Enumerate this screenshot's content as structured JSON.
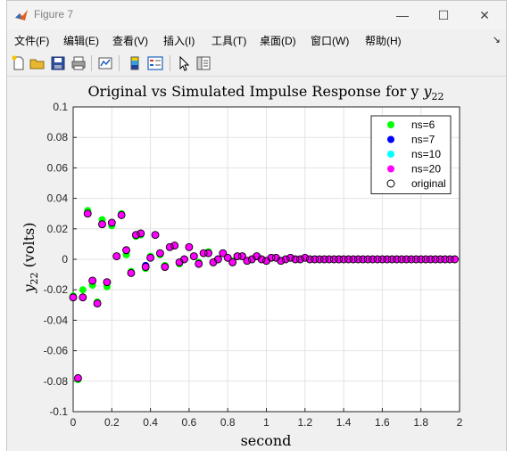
{
  "window": {
    "title": "Figure 7",
    "minimize_glyph": "—",
    "maximize_glyph": "☐",
    "close_glyph": "✕"
  },
  "menu": {
    "items": [
      "文件(F)",
      "编辑(E)",
      "查看(V)",
      "插入(I)",
      "工具(T)",
      "桌面(D)",
      "窗口(W)",
      "帮助(H)"
    ],
    "pin_glyph": "↘"
  },
  "toolbar": {
    "icons": [
      "new-figure-icon",
      "open-file-icon",
      "save-icon",
      "print-icon",
      "link-plot-icon",
      "colorbar-icon",
      "legend-icon",
      "pointer-icon",
      "property-inspector-icon"
    ]
  },
  "chart_data": {
    "type": "scatter",
    "title": "Original vs Simulated Impulse Response for y",
    "title_subscript": "22",
    "xlabel": "second",
    "ylabel": "y",
    "ylabel_subscript": "22",
    "ylabel_suffix": "(volts)",
    "xlim": [
      0,
      2
    ],
    "ylim": [
      -0.1,
      0.1
    ],
    "xticks": [
      0,
      0.2,
      0.4,
      0.6,
      0.8,
      1,
      1.2,
      1.4,
      1.6,
      1.8,
      2
    ],
    "xtick_labels": [
      "0",
      "0.2",
      "0.4",
      "0.6",
      "0.8",
      "1",
      "1.2",
      "1.4",
      "1.6",
      "1.8",
      "2"
    ],
    "yticks": [
      -0.1,
      -0.08,
      -0.06,
      -0.04,
      -0.02,
      0,
      0.02,
      0.04,
      0.06,
      0.08,
      0.1
    ],
    "ytick_labels": [
      "-0.1",
      "-0.08",
      "-0.06",
      "-0.04",
      "-0.02",
      "0",
      "0.02",
      "0.04",
      "0.06",
      "0.08",
      "0.1"
    ],
    "grid": true,
    "legend_position": "top-right",
    "sample_time": 0.025,
    "series": [
      {
        "name": "ns=6",
        "color": "#00ff00",
        "values": [
          -0.024,
          -0.079,
          -0.02,
          0.032,
          -0.017,
          -0.028,
          0.026,
          -0.018,
          0.022,
          0.002,
          0.03,
          0.003,
          -0.008,
          0.015,
          0.016,
          -0.006,
          0.002,
          0.016,
          0.003,
          -0.004,
          0.008,
          0.009,
          -0.003,
          0.0,
          0.008,
          0.002,
          -0.002,
          0.004,
          0.005,
          -0.002,
          0.0,
          0.004,
          0.001,
          -0.001,
          0.002,
          0.002,
          -0.001,
          0.0,
          0.002,
          0.0,
          -0.001,
          0.001,
          0.001,
          -0.001,
          0.0,
          0.001,
          0.0,
          0.0,
          0.001,
          0.0,
          0.0,
          0.0,
          0.0,
          0.0,
          0.0,
          0.0,
          0.0,
          0.0,
          0.0,
          0.0,
          0.0,
          0.0,
          0.0,
          0.0,
          0.0,
          0.0,
          0.0,
          0.0,
          0.0,
          0.0,
          0.0,
          0.0,
          0.0,
          0.0,
          0.0,
          0.0,
          0.0,
          0.0,
          0.0,
          0.0
        ]
      },
      {
        "name": "ns=7",
        "color": "#0000ff",
        "values": [
          -0.025,
          -0.078,
          -0.025,
          0.03,
          -0.014,
          -0.029,
          0.023,
          -0.015,
          0.024,
          0.002,
          0.029,
          0.006,
          -0.009,
          0.016,
          0.017,
          -0.004,
          0.001,
          0.016,
          0.004,
          -0.005,
          0.008,
          0.009,
          -0.002,
          0.0,
          0.008,
          0.002,
          -0.003,
          0.004,
          0.004,
          -0.002,
          0.0,
          0.004,
          0.001,
          -0.002,
          0.002,
          0.002,
          -0.001,
          0.0,
          0.002,
          0.0,
          -0.001,
          0.001,
          0.001,
          -0.001,
          0.0,
          0.001,
          0.0,
          0.0,
          0.001,
          0.0,
          0.0,
          0.0,
          0.0,
          0.0,
          0.0,
          0.0,
          0.0,
          0.0,
          0.0,
          0.0,
          0.0,
          0.0,
          0.0,
          0.0,
          0.0,
          0.0,
          0.0,
          0.0,
          0.0,
          0.0,
          0.0,
          0.0,
          0.0,
          0.0,
          0.0,
          0.0,
          0.0,
          0.0,
          0.0,
          0.0
        ]
      },
      {
        "name": "ns=10",
        "color": "#00ffff",
        "values": [
          -0.025,
          -0.078,
          -0.025,
          0.03,
          -0.014,
          -0.029,
          0.023,
          -0.015,
          0.024,
          0.002,
          0.029,
          0.006,
          -0.009,
          0.016,
          0.017,
          -0.005,
          0.001,
          0.016,
          0.004,
          -0.005,
          0.008,
          0.009,
          -0.002,
          0.0,
          0.008,
          0.002,
          -0.003,
          0.004,
          0.004,
          -0.002,
          0.0,
          0.004,
          0.001,
          -0.002,
          0.002,
          0.002,
          -0.001,
          0.0,
          0.002,
          0.0,
          -0.001,
          0.001,
          0.001,
          -0.001,
          0.0,
          0.001,
          0.0,
          0.0,
          0.001,
          0.0,
          0.0,
          0.0,
          0.0,
          0.0,
          0.0,
          0.0,
          0.0,
          0.0,
          0.0,
          0.0,
          0.0,
          0.0,
          0.0,
          0.0,
          0.0,
          0.0,
          0.0,
          0.0,
          0.0,
          0.0,
          0.0,
          0.0,
          0.0,
          0.0,
          0.0,
          0.0,
          0.0,
          0.0,
          0.0,
          0.0
        ]
      },
      {
        "name": "ns=20",
        "color": "#ff00ff",
        "values": [
          -0.025,
          -0.078,
          -0.025,
          0.03,
          -0.014,
          -0.029,
          0.023,
          -0.015,
          0.024,
          0.002,
          0.029,
          0.006,
          -0.009,
          0.016,
          0.017,
          -0.005,
          0.001,
          0.016,
          0.004,
          -0.005,
          0.008,
          0.009,
          -0.002,
          0.0,
          0.008,
          0.002,
          -0.003,
          0.004,
          0.004,
          -0.002,
          0.0,
          0.004,
          0.001,
          -0.002,
          0.002,
          0.002,
          -0.001,
          0.0,
          0.002,
          0.0,
          -0.001,
          0.001,
          0.001,
          -0.001,
          0.0,
          0.001,
          0.0,
          0.0,
          0.001,
          0.0,
          0.0,
          0.0,
          0.0,
          0.0,
          0.0,
          0.0,
          0.0,
          0.0,
          0.0,
          0.0,
          0.0,
          0.0,
          0.0,
          0.0,
          0.0,
          0.0,
          0.0,
          0.0,
          0.0,
          0.0,
          0.0,
          0.0,
          0.0,
          0.0,
          0.0,
          0.0,
          0.0,
          0.0,
          0.0,
          0.0
        ]
      },
      {
        "name": "original",
        "color": "#000000",
        "values": [
          -0.025,
          -0.078,
          -0.025,
          0.03,
          -0.014,
          -0.029,
          0.023,
          -0.015,
          0.024,
          0.002,
          0.029,
          0.006,
          -0.009,
          0.016,
          0.017,
          -0.005,
          0.001,
          0.016,
          0.004,
          -0.005,
          0.008,
          0.009,
          -0.002,
          0.0,
          0.008,
          0.002,
          -0.003,
          0.004,
          0.004,
          -0.002,
          0.0,
          0.004,
          0.001,
          -0.002,
          0.002,
          0.002,
          -0.001,
          0.0,
          0.002,
          0.0,
          -0.001,
          0.001,
          0.001,
          -0.001,
          0.0,
          0.001,
          0.0,
          0.0,
          0.001,
          0.0,
          0.0,
          0.0,
          0.0,
          0.0,
          0.0,
          0.0,
          0.0,
          0.0,
          0.0,
          0.0,
          0.0,
          0.0,
          0.0,
          0.0,
          0.0,
          0.0,
          0.0,
          0.0,
          0.0,
          0.0,
          0.0,
          0.0,
          0.0,
          0.0,
          0.0,
          0.0,
          0.0,
          0.0,
          0.0,
          0.0
        ]
      }
    ]
  }
}
